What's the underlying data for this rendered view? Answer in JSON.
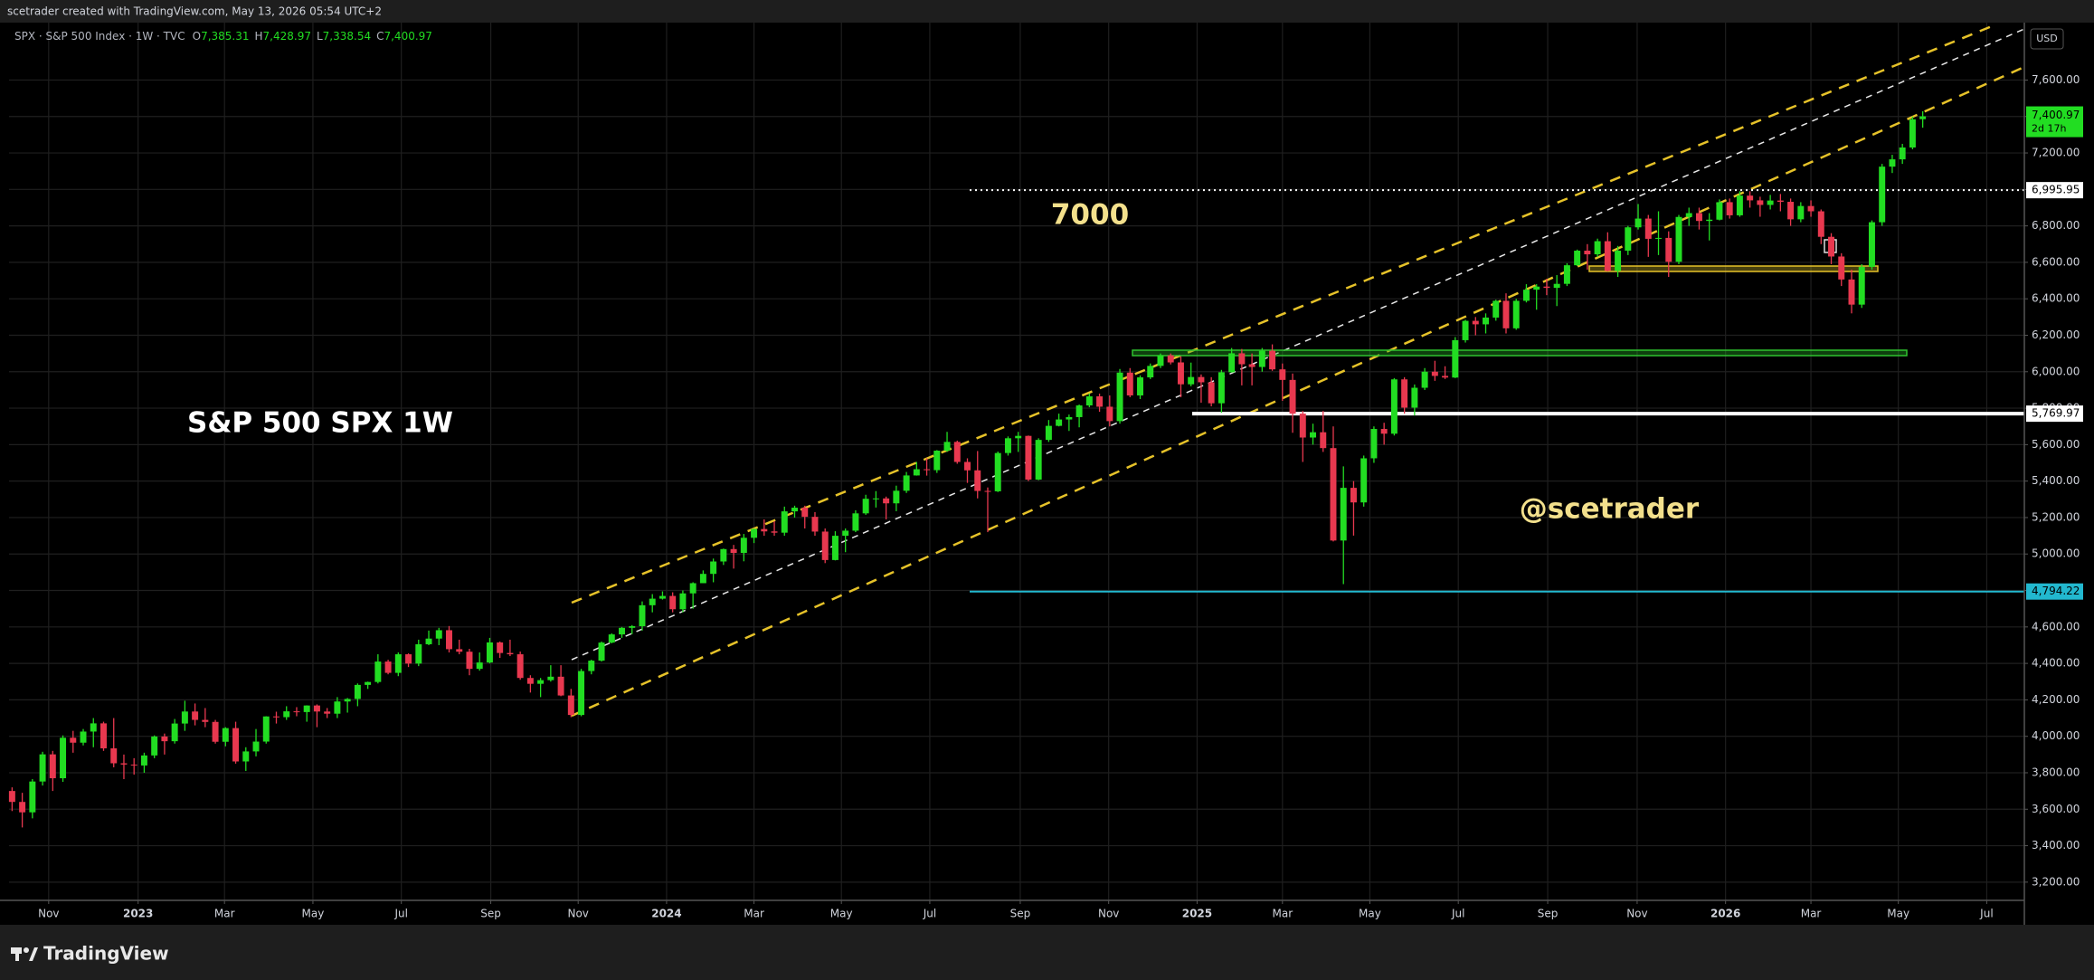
{
  "header": {
    "credit": "scetrader created with TradingView.com, May 13, 2026 05:54 UTC+2",
    "symbol": "SPX · S&P 500 Index · 1W · TVC",
    "ohlc_keys": [
      "O",
      "H",
      "L",
      "C"
    ],
    "ohlc_labels": [
      "7,385.31",
      "7,428.97",
      "7,338.54",
      "7,400.97"
    ]
  },
  "chart_data": {
    "type": "candlestick",
    "up_color": "#22dd22",
    "down_color": "#e8384f",
    "candles": [
      [
        3700,
        3720,
        3590,
        3640
      ],
      [
        3640,
        3690,
        3500,
        3583
      ],
      [
        3583,
        3765,
        3550,
        3752
      ],
      [
        3752,
        3915,
        3730,
        3901
      ],
      [
        3901,
        3920,
        3700,
        3770
      ],
      [
        3770,
        4005,
        3750,
        3992
      ],
      [
        3992,
        4030,
        3910,
        3965
      ],
      [
        3965,
        4040,
        3950,
        4026
      ],
      [
        4026,
        4100,
        3940,
        4071
      ],
      [
        4071,
        4080,
        3920,
        3934
      ],
      [
        3934,
        4100,
        3830,
        3852
      ],
      [
        3852,
        3900,
        3765,
        3845
      ],
      [
        3845,
        3880,
        3790,
        3840
      ],
      [
        3840,
        3910,
        3800,
        3895
      ],
      [
        3895,
        4005,
        3880,
        3999
      ],
      [
        3999,
        4015,
        3900,
        3973
      ],
      [
        3973,
        4095,
        3960,
        4070
      ],
      [
        4070,
        4195,
        4030,
        4136
      ],
      [
        4136,
        4180,
        4060,
        4090
      ],
      [
        4090,
        4155,
        4050,
        4079
      ],
      [
        4079,
        4090,
        3960,
        3970
      ],
      [
        3970,
        4050,
        3945,
        4045
      ],
      [
        4045,
        4080,
        3850,
        3862
      ],
      [
        3862,
        3940,
        3810,
        3917
      ],
      [
        3917,
        4040,
        3890,
        3971
      ],
      [
        3971,
        4110,
        3960,
        4109
      ],
      [
        4109,
        4135,
        4070,
        4105
      ],
      [
        4105,
        4165,
        4090,
        4137
      ],
      [
        4137,
        4160,
        4110,
        4133
      ],
      [
        4133,
        4170,
        4080,
        4169
      ],
      [
        4169,
        4175,
        4050,
        4136
      ],
      [
        4136,
        4155,
        4100,
        4124
      ],
      [
        4124,
        4215,
        4100,
        4191
      ],
      [
        4191,
        4210,
        4130,
        4205
      ],
      [
        4205,
        4290,
        4165,
        4282
      ],
      [
        4282,
        4300,
        4260,
        4298
      ],
      [
        4298,
        4450,
        4290,
        4410
      ],
      [
        4410,
        4420,
        4340,
        4348
      ],
      [
        4348,
        4460,
        4330,
        4450
      ],
      [
        4450,
        4455,
        4380,
        4399
      ],
      [
        4399,
        4530,
        4385,
        4505
      ],
      [
        4505,
        4580,
        4500,
        4536
      ],
      [
        4536,
        4595,
        4500,
        4582
      ],
      [
        4582,
        4605,
        4460,
        4478
      ],
      [
        4478,
        4530,
        4450,
        4464
      ],
      [
        4464,
        4480,
        4335,
        4370
      ],
      [
        4370,
        4460,
        4360,
        4405
      ],
      [
        4405,
        4540,
        4400,
        4515
      ],
      [
        4515,
        4520,
        4430,
        4457
      ],
      [
        4457,
        4530,
        4440,
        4450
      ],
      [
        4450,
        4465,
        4310,
        4320
      ],
      [
        4320,
        4335,
        4240,
        4288
      ],
      [
        4288,
        4320,
        4215,
        4308
      ],
      [
        4308,
        4390,
        4300,
        4327
      ],
      [
        4327,
        4390,
        4220,
        4224
      ],
      [
        4224,
        4260,
        4105,
        4117
      ],
      [
        4117,
        4370,
        4110,
        4358
      ],
      [
        4358,
        4420,
        4340,
        4415
      ],
      [
        4415,
        4520,
        4410,
        4514
      ],
      [
        4514,
        4565,
        4510,
        4559
      ],
      [
        4559,
        4600,
        4540,
        4595
      ],
      [
        4595,
        4610,
        4560,
        4604
      ],
      [
        4604,
        4740,
        4580,
        4719
      ],
      [
        4719,
        4780,
        4680,
        4755
      ],
      [
        4755,
        4795,
        4750,
        4770
      ],
      [
        4770,
        4790,
        4680,
        4697
      ],
      [
        4697,
        4800,
        4680,
        4784
      ],
      [
        4784,
        4845,
        4700,
        4840
      ],
      [
        4840,
        4910,
        4840,
        4891
      ],
      [
        4891,
        4975,
        4845,
        4959
      ],
      [
        4959,
        5030,
        4940,
        5027
      ],
      [
        5027,
        5050,
        4920,
        5006
      ],
      [
        5006,
        5110,
        4960,
        5089
      ],
      [
        5089,
        5140,
        5060,
        5137
      ],
      [
        5137,
        5190,
        5100,
        5124
      ],
      [
        5124,
        5180,
        5100,
        5117
      ],
      [
        5117,
        5260,
        5100,
        5234
      ],
      [
        5234,
        5265,
        5200,
        5254
      ],
      [
        5254,
        5265,
        5140,
        5204
      ],
      [
        5204,
        5230,
        5100,
        5123
      ],
      [
        5123,
        5140,
        4950,
        4967
      ],
      [
        4967,
        5125,
        4965,
        5100
      ],
      [
        5100,
        5140,
        5010,
        5128
      ],
      [
        5128,
        5240,
        5120,
        5223
      ],
      [
        5223,
        5325,
        5215,
        5303
      ],
      [
        5303,
        5345,
        5255,
        5305
      ],
      [
        5305,
        5315,
        5190,
        5278
      ],
      [
        5278,
        5375,
        5235,
        5347
      ],
      [
        5347,
        5450,
        5335,
        5431
      ],
      [
        5431,
        5505,
        5430,
        5465
      ],
      [
        5465,
        5525,
        5430,
        5460
      ],
      [
        5460,
        5570,
        5445,
        5567
      ],
      [
        5567,
        5670,
        5560,
        5615
      ],
      [
        5615,
        5622,
        5495,
        5505
      ],
      [
        5505,
        5525,
        5390,
        5459
      ],
      [
        5459,
        5565,
        5305,
        5346
      ],
      [
        5346,
        5365,
        5120,
        5344
      ],
      [
        5344,
        5562,
        5340,
        5554
      ],
      [
        5554,
        5645,
        5540,
        5635
      ],
      [
        5635,
        5670,
        5560,
        5648
      ],
      [
        5648,
        5650,
        5400,
        5408
      ],
      [
        5408,
        5635,
        5405,
        5626
      ],
      [
        5626,
        5735,
        5615,
        5703
      ],
      [
        5703,
        5770,
        5700,
        5738
      ],
      [
        5738,
        5765,
        5675,
        5751
      ],
      [
        5751,
        5820,
        5695,
        5815
      ],
      [
        5815,
        5880,
        5805,
        5865
      ],
      [
        5865,
        5880,
        5780,
        5808
      ],
      [
        5808,
        5870,
        5700,
        5729
      ],
      [
        5729,
        6015,
        5715,
        5995
      ],
      [
        5995,
        6020,
        5860,
        5870
      ],
      [
        5870,
        5980,
        5850,
        5969
      ],
      [
        5969,
        6045,
        5960,
        6032
      ],
      [
        6032,
        6100,
        6020,
        6090
      ],
      [
        6090,
        6100,
        6040,
        6051
      ],
      [
        6051,
        6085,
        5860,
        5931
      ],
      [
        5931,
        6050,
        5920,
        5971
      ],
      [
        5971,
        5985,
        5830,
        5942
      ],
      [
        5942,
        5970,
        5810,
        5827
      ],
      [
        5827,
        6010,
        5775,
        5997
      ],
      [
        5997,
        6130,
        5995,
        6101
      ],
      [
        6101,
        6125,
        5925,
        6041
      ],
      [
        6041,
        6100,
        5925,
        6026
      ],
      [
        6026,
        6130,
        6000,
        6115
      ],
      [
        6115,
        6150,
        6005,
        6013
      ],
      [
        6013,
        6045,
        5840,
        5955
      ],
      [
        5955,
        5990,
        5665,
        5770
      ],
      [
        5770,
        5785,
        5505,
        5639
      ],
      [
        5639,
        5715,
        5600,
        5668
      ],
      [
        5668,
        5785,
        5560,
        5581
      ],
      [
        5581,
        5700,
        5069,
        5074
      ],
      [
        5074,
        5481,
        4835,
        5363
      ],
      [
        5363,
        5400,
        5101,
        5283
      ],
      [
        5283,
        5540,
        5260,
        5525
      ],
      [
        5525,
        5700,
        5500,
        5686
      ],
      [
        5686,
        5720,
        5600,
        5660
      ],
      [
        5660,
        5965,
        5650,
        5958
      ],
      [
        5958,
        5970,
        5770,
        5803
      ],
      [
        5803,
        5930,
        5760,
        5912
      ],
      [
        5912,
        6020,
        5900,
        6000
      ],
      [
        6000,
        6060,
        5950,
        5977
      ],
      [
        5977,
        6030,
        5960,
        5968
      ],
      [
        5968,
        6190,
        5965,
        6173
      ],
      [
        6173,
        6285,
        6160,
        6279
      ],
      [
        6279,
        6300,
        6200,
        6260
      ],
      [
        6260,
        6320,
        6210,
        6297
      ],
      [
        6297,
        6395,
        6280,
        6389
      ],
      [
        6389,
        6430,
        6210,
        6238
      ],
      [
        6238,
        6400,
        6230,
        6389
      ],
      [
        6389,
        6480,
        6380,
        6450
      ],
      [
        6450,
        6480,
        6340,
        6467
      ],
      [
        6467,
        6510,
        6420,
        6460
      ],
      [
        6460,
        6530,
        6360,
        6482
      ],
      [
        6482,
        6595,
        6470,
        6584
      ],
      [
        6584,
        6670,
        6580,
        6664
      ],
      [
        6664,
        6700,
        6560,
        6644
      ],
      [
        6644,
        6730,
        6630,
        6716
      ],
      [
        6716,
        6765,
        6550,
        6553
      ],
      [
        6553,
        6690,
        6520,
        6664
      ],
      [
        6664,
        6800,
        6640,
        6792
      ],
      [
        6792,
        6920,
        6780,
        6840
      ],
      [
        6840,
        6860,
        6630,
        6729
      ],
      [
        6729,
        6880,
        6640,
        6734
      ],
      [
        6734,
        6770,
        6520,
        6603
      ],
      [
        6603,
        6860,
        6590,
        6849
      ],
      [
        6849,
        6900,
        6800,
        6870
      ],
      [
        6870,
        6900,
        6780,
        6827
      ],
      [
        6827,
        6870,
        6720,
        6834
      ],
      [
        6834,
        6945,
        6830,
        6930
      ],
      [
        6930,
        6950,
        6840,
        6858
      ],
      [
        6858,
        6990,
        6850,
        6966
      ],
      [
        6966,
        6990,
        6900,
        6940
      ],
      [
        6940,
        6960,
        6850,
        6915
      ],
      [
        6915,
        6970,
        6890,
        6939
      ],
      [
        6939,
        6975,
        6880,
        6932
      ],
      [
        6932,
        6950,
        6800,
        6836
      ],
      [
        6836,
        6930,
        6820,
        6909
      ],
      [
        6909,
        6940,
        6850,
        6880
      ],
      [
        6880,
        6890,
        6700,
        6740
      ],
      [
        6740,
        6760,
        6590,
        6632
      ],
      [
        6632,
        6650,
        6470,
        6506
      ],
      [
        6506,
        6560,
        6320,
        6368
      ],
      [
        6368,
        6590,
        6350,
        6575
      ],
      [
        6575,
        6830,
        6560,
        6820
      ],
      [
        6820,
        7140,
        6800,
        7125
      ],
      [
        7125,
        7190,
        7090,
        7165
      ],
      [
        7165,
        7250,
        7140,
        7230
      ],
      [
        7230,
        7400,
        7220,
        7385
      ],
      [
        7385.31,
        7428.97,
        7338.54,
        7400.97
      ]
    ],
    "xlim": [
      -0.3,
      198
    ],
    "xticks": [
      {
        "value": 3.6,
        "label": "Nov"
      },
      {
        "value": 12.4,
        "label": "2023"
      },
      {
        "value": 20.9,
        "label": "Mar"
      },
      {
        "value": 29.6,
        "label": "May"
      },
      {
        "value": 38.3,
        "label": "Jul"
      },
      {
        "value": 47.1,
        "label": "Sep"
      },
      {
        "value": 55.7,
        "label": "Nov"
      },
      {
        "value": 64.4,
        "label": "2024"
      },
      {
        "value": 73.0,
        "label": "Mar"
      },
      {
        "value": 81.6,
        "label": "May"
      },
      {
        "value": 90.3,
        "label": "Jul"
      },
      {
        "value": 99.2,
        "label": "Sep"
      },
      {
        "value": 107.9,
        "label": "Nov"
      },
      {
        "value": 116.6,
        "label": "2025"
      },
      {
        "value": 125.0,
        "label": "Mar"
      },
      {
        "value": 133.6,
        "label": "May"
      },
      {
        "value": 142.3,
        "label": "Jul"
      },
      {
        "value": 151.1,
        "label": "Sep"
      },
      {
        "value": 159.9,
        "label": "Nov"
      },
      {
        "value": 168.6,
        "label": "2026"
      },
      {
        "value": 177.0,
        "label": "Mar"
      },
      {
        "value": 185.6,
        "label": "May"
      },
      {
        "value": 194.3,
        "label": "Jul"
      }
    ],
    "ylim": [
      3100,
      7915
    ],
    "yticks": [
      {
        "value": 7600,
        "label": "7,600.00"
      },
      {
        "value": 7400,
        "label": "7,400.00"
      },
      {
        "value": 7200,
        "label": "7,200.00"
      },
      {
        "value": 7000,
        "label": "7,000.00"
      },
      {
        "value": 6800,
        "label": "6,800.00"
      },
      {
        "value": 6600,
        "label": "6,600.00"
      },
      {
        "value": 6400,
        "label": "6,400.00"
      },
      {
        "value": 6200,
        "label": "6,200.00"
      },
      {
        "value": 6000,
        "label": "6,000.00"
      },
      {
        "value": 5800,
        "label": "5,800.00"
      },
      {
        "value": 5600,
        "label": "5,600.00"
      },
      {
        "value": 5400,
        "label": "5,400.00"
      },
      {
        "value": 5200,
        "label": "5,200.00"
      },
      {
        "value": 5000,
        "label": "5,000.00"
      },
      {
        "value": 4800,
        "label": "4,800.00"
      },
      {
        "value": 4600,
        "label": "4,600.00"
      },
      {
        "value": 4400,
        "label": "4,400.00"
      },
      {
        "value": 4200,
        "label": "4,200.00"
      },
      {
        "value": 4000,
        "label": "4,000.00"
      },
      {
        "value": 3800,
        "label": "3,800.00"
      },
      {
        "value": 3600,
        "label": "3,600.00"
      },
      {
        "value": 3400,
        "label": "3,400.00"
      },
      {
        "value": 3200,
        "label": "3,200.00"
      }
    ],
    "grid": true,
    "currency": "USD",
    "last_price_label": "7,400.97",
    "countdown": "2d 17h",
    "levels": [
      {
        "value": 6995.95,
        "label": "6,995.95",
        "color": "#ffffff",
        "style": "dotted"
      },
      {
        "value": 5769.97,
        "label": "5,769.97",
        "color": "#ffffff",
        "style": "solid"
      },
      {
        "value": 4794.22,
        "label": "4,794.22",
        "color": "#22b8cf",
        "style": "solid"
      }
    ],
    "annotations": [
      "7000",
      "S&P 500 SPX 1W",
      "@scetrader"
    ]
  },
  "footer": {
    "brand": "TradingView"
  }
}
